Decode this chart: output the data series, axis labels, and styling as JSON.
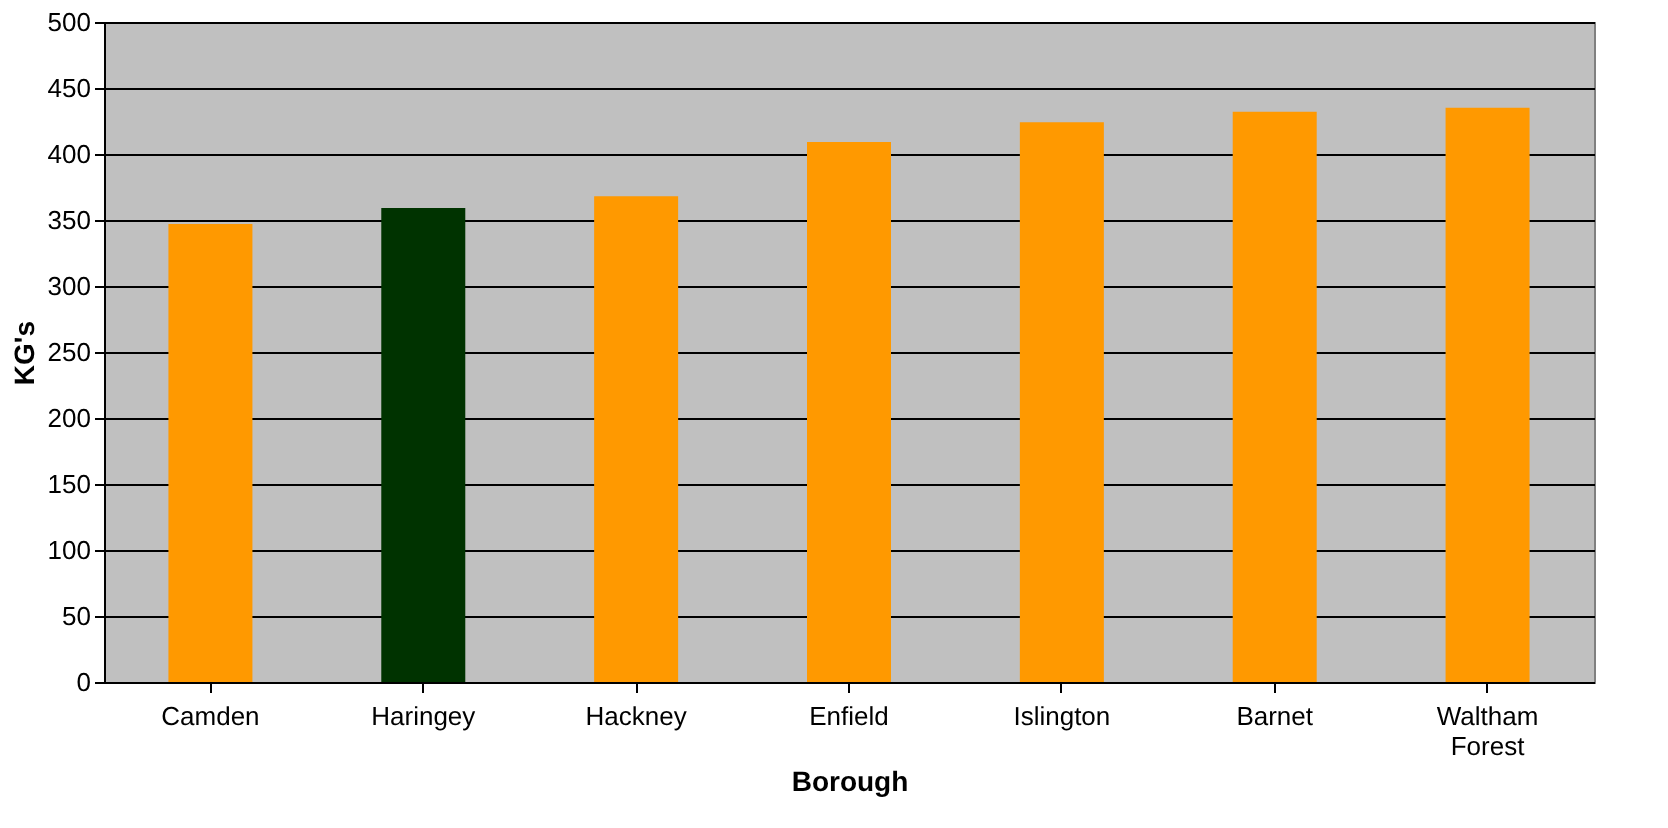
{
  "chart_data": {
    "type": "bar",
    "xlabel": "Borough",
    "ylabel": "KG's",
    "categories": [
      "Camden",
      "Haringey",
      "Hackney",
      "Enfield",
      "Islington",
      "Barnet",
      "Waltham Forest"
    ],
    "values": [
      347,
      359,
      368,
      409,
      424,
      432,
      435
    ],
    "colors": [
      "#ff9900",
      "#003300",
      "#ff9900",
      "#ff9900",
      "#ff9900",
      "#ff9900",
      "#ff9900"
    ],
    "ylim": [
      0,
      500
    ],
    "yticks": [
      0,
      50,
      100,
      150,
      200,
      250,
      300,
      350,
      400,
      450,
      500
    ],
    "grid": "y",
    "legend": false
  }
}
